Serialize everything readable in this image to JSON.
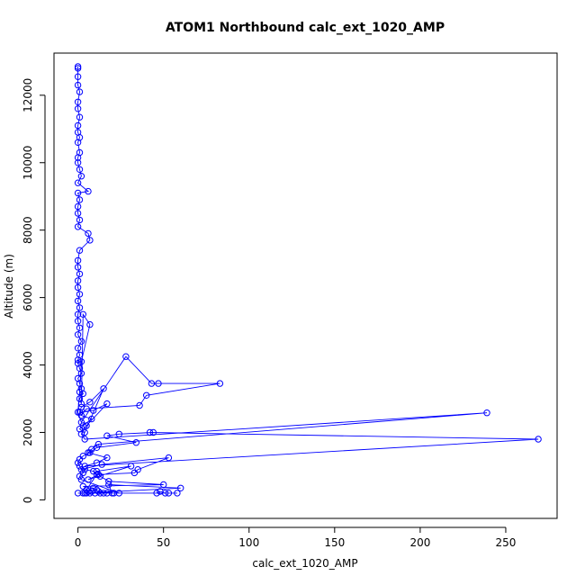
{
  "chart_data": {
    "type": "scatter",
    "title": "ATOM1 Northbound calc_ext_1020_AMP",
    "xlabel": "calc_ext_1020_AMP",
    "ylabel": "Altitude (m)",
    "xlim": [
      -14,
      280
    ],
    "ylim": [
      -550,
      13250
    ],
    "x_ticks": [
      0,
      50,
      100,
      150,
      200,
      250
    ],
    "y_ticks": [
      0,
      2000,
      4000,
      6000,
      8000,
      10000,
      12000
    ],
    "grid": false,
    "legend": "none",
    "color": "#0000FF",
    "style": "lines+open-circles",
    "series": [
      {
        "x": [
          0,
          0,
          0,
          0,
          1,
          0,
          0,
          1,
          0,
          0,
          1,
          0,
          1,
          0,
          0,
          1,
          2,
          0,
          6,
          0,
          1,
          0,
          0,
          1,
          0,
          6,
          7,
          1,
          0,
          0,
          1,
          0,
          0,
          1,
          0,
          1,
          0,
          0,
          1,
          0,
          2,
          0,
          1,
          0,
          0,
          1,
          2,
          0,
          1,
          2,
          3,
          1,
          2,
          3,
          7,
          2,
          1,
          0,
          2,
          28,
          43,
          47,
          83,
          40,
          36,
          5,
          2,
          8,
          3,
          1,
          4,
          15,
          7,
          2,
          1,
          9,
          17,
          5,
          2,
          4,
          239,
          12,
          8,
          6,
          17,
          11,
          4,
          269,
          42,
          44,
          24,
          17,
          34,
          11,
          7,
          3,
          1,
          0,
          1,
          2,
          14,
          53,
          35,
          33,
          12,
          6,
          31,
          11,
          13,
          18,
          50,
          3,
          9,
          11,
          6,
          4,
          60,
          18,
          20,
          12,
          15,
          46,
          48,
          51,
          53,
          58,
          7,
          10,
          3,
          0,
          5,
          13,
          17,
          21,
          24,
          2,
          1,
          3,
          4,
          9,
          11,
          5,
          8
        ],
        "y": [
          12850,
          12800,
          12550,
          12300,
          12100,
          11800,
          11600,
          11350,
          11100,
          10900,
          10750,
          10600,
          10300,
          10150,
          10000,
          9800,
          9600,
          9400,
          9150,
          9100,
          8900,
          8700,
          8500,
          8300,
          8100,
          7900,
          7700,
          7400,
          7100,
          6900,
          6700,
          6500,
          6300,
          6100,
          5900,
          5700,
          5500,
          5300,
          5100,
          4900,
          4700,
          4500,
          4300,
          4150,
          4050,
          3900,
          3750,
          3600,
          3450,
          3300,
          3150,
          3000,
          2850,
          5500,
          5200,
          4100,
          3200,
          2600,
          2300,
          4250,
          3450,
          3450,
          3450,
          3100,
          2800,
          2700,
          2500,
          2400,
          2200,
          2100,
          2000,
          3300,
          2900,
          2750,
          2600,
          2650,
          2850,
          2200,
          1950,
          1800,
          2580,
          1650,
          1500,
          1400,
          1250,
          1100,
          1000,
          1800,
          2000,
          2000,
          1950,
          1900,
          1700,
          1550,
          1400,
          1300,
          1200,
          1100,
          1000,
          900,
          1050,
          1250,
          900,
          800,
          750,
          600,
          1000,
          850,
          700,
          550,
          450,
          400,
          350,
          300,
          250,
          200,
          350,
          450,
          200,
          250,
          200,
          200,
          250,
          200,
          200,
          200,
          200,
          200,
          200,
          200,
          200,
          200,
          200,
          200,
          200,
          600,
          700,
          800,
          900,
          850,
          750,
          300,
          250
        ]
      }
    ]
  }
}
